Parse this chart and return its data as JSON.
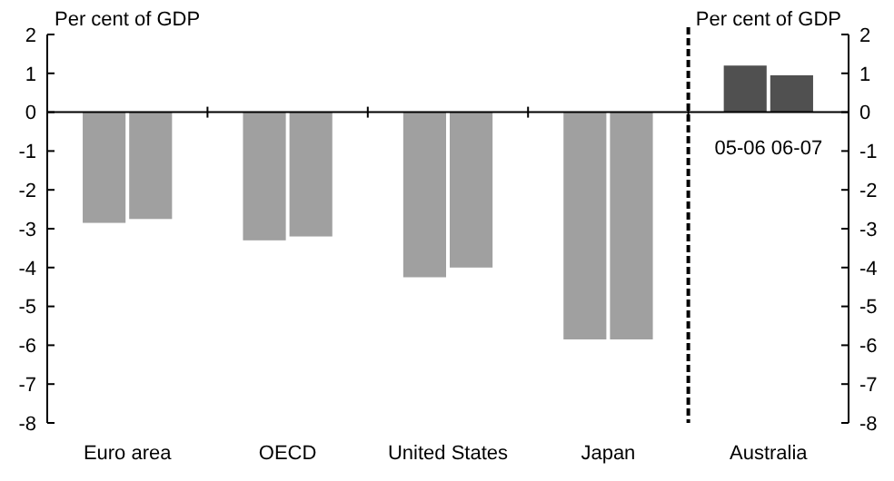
{
  "chart_data": {
    "type": "bar",
    "categories": [
      "Euro area",
      "OECD",
      "United States",
      "Japan",
      "Australia"
    ],
    "series": [
      {
        "colors": [
          "#a0a0a0",
          "#a0a0a0",
          "#a0a0a0",
          "#a0a0a0",
          "#505050"
        ],
        "values": [
          -2.85,
          -3.3,
          -4.25,
          -5.85,
          1.2
        ]
      },
      {
        "colors": [
          "#a0a0a0",
          "#a0a0a0",
          "#a0a0a0",
          "#a0a0a0",
          "#505050"
        ],
        "values": [
          -2.75,
          -3.2,
          -4.0,
          -5.85,
          0.95
        ]
      }
    ],
    "ylabel": "Per cent of GDP",
    "y2label": "Per cent of GDP",
    "ylim": [
      -8,
      2
    ],
    "yticks": [
      -8,
      -7,
      -6,
      -5,
      -4,
      -3,
      -2,
      -1,
      0,
      1,
      2
    ],
    "y2lim": [
      -8,
      2
    ],
    "y2ticks": [
      -8,
      -7,
      -6,
      -5,
      -4,
      -3,
      -2,
      -1,
      0,
      1,
      2
    ],
    "annotations": [
      "05-06 06-07"
    ]
  }
}
